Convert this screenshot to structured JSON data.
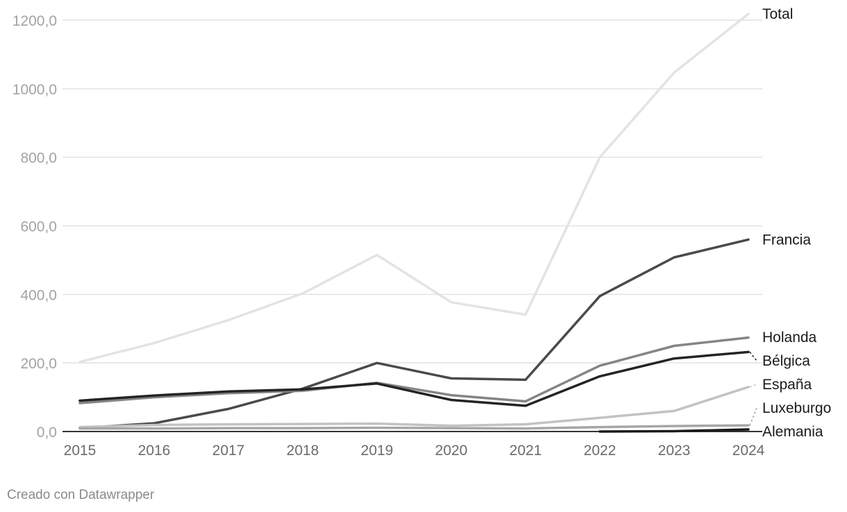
{
  "chart_data": {
    "type": "line",
    "x": [
      "2015",
      "2016",
      "2017",
      "2018",
      "2019",
      "2020",
      "2021",
      "2022",
      "2023",
      "2024"
    ],
    "ylim": [
      0,
      1200
    ],
    "yticks": [
      "0,0",
      "200,0",
      "400,0",
      "600,0",
      "800,0",
      "1000,0",
      "1200,0"
    ],
    "grid": true,
    "legend": "direct labels at line ends",
    "series": [
      {
        "name": "Total",
        "color": "#e3e3e3",
        "values": [
          203,
          258,
          325,
          403,
          515,
          377,
          341,
          800,
          1047,
          1218
        ]
      },
      {
        "name": "Francia",
        "color": "#4a4a4a",
        "values": [
          10,
          24,
          66,
          125,
          200,
          155,
          151,
          395,
          508,
          560
        ]
      },
      {
        "name": "Holanda",
        "color": "#858585",
        "values": [
          83,
          100,
          112,
          119,
          142,
          106,
          88,
          192,
          250,
          274
        ]
      },
      {
        "name": "Bélgica",
        "color": "#242424",
        "values": [
          90,
          105,
          117,
          123,
          140,
          92,
          75,
          161,
          213,
          232
        ]
      },
      {
        "name": "España",
        "color": "#c2c2c2",
        "values": [
          13,
          19,
          21,
          22,
          23,
          17,
          21,
          40,
          60,
          130
        ]
      },
      {
        "name": "Luxeburgo",
        "color": "#a6a6a6",
        "values": [
          9,
          9,
          10,
          10,
          11,
          10,
          9,
          13,
          16,
          18
        ]
      },
      {
        "name": "Alemania",
        "color": "#1a1a1a",
        "values": [
          null,
          null,
          null,
          null,
          null,
          null,
          null,
          0,
          1,
          6
        ]
      }
    ]
  },
  "footer": "Creado con Datawrapper"
}
